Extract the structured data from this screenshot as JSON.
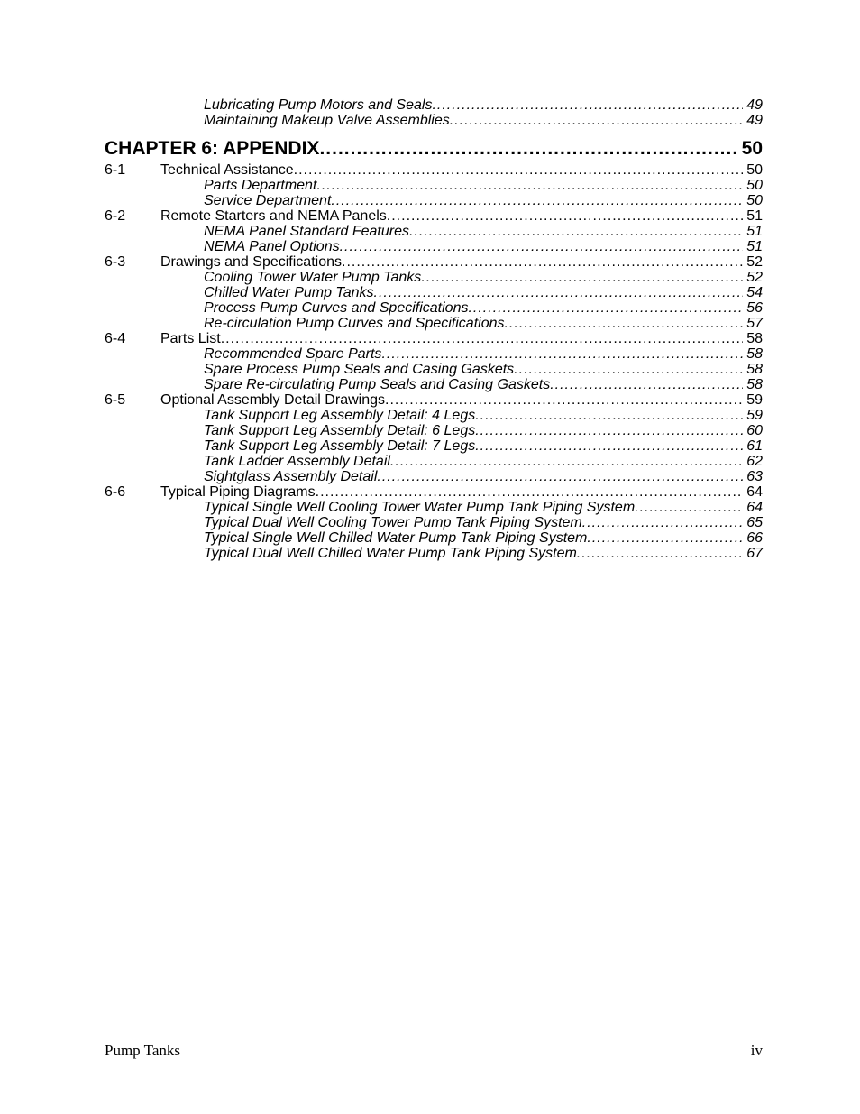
{
  "text_color": "#000000",
  "background_color": "#ffffff",
  "pre_subs": [
    {
      "label": "Lubricating Pump Motors and Seals",
      "page": "49"
    },
    {
      "label": "Maintaining Makeup Valve Assemblies",
      "page": "49"
    }
  ],
  "chapter": {
    "label": "CHAPTER 6:   APPENDIX",
    "page": "50"
  },
  "sections": [
    {
      "num": "6-1",
      "label": "Technical Assistance",
      "page": "50",
      "subs": [
        {
          "label": "Parts Department",
          "page": "50"
        },
        {
          "label": "Service Department",
          "page": "50"
        }
      ]
    },
    {
      "num": "6-2",
      "label": "Remote Starters and NEMA Panels",
      "page": "51",
      "subs": [
        {
          "label": "NEMA Panel Standard Features",
          "page": "51"
        },
        {
          "label": "NEMA Panel Options",
          "page": "51"
        }
      ]
    },
    {
      "num": "6-3",
      "label": "Drawings and Specifications",
      "page": "52",
      "subs": [
        {
          "label": "Cooling Tower Water Pump Tanks",
          "page": "52"
        },
        {
          "label": "Chilled Water Pump Tanks",
          "page": "54"
        },
        {
          "label": "Process Pump Curves and Specifications",
          "page": "56"
        },
        {
          "label": "Re-circulation Pump Curves and Specifications",
          "page": "57"
        }
      ]
    },
    {
      "num": "6-4",
      "label": "Parts List",
      "page": "58",
      "subs": [
        {
          "label": "Recommended Spare Parts",
          "page": "58"
        },
        {
          "label": "Spare Process Pump Seals and Casing Gaskets",
          "page": "58"
        },
        {
          "label": "Spare Re-circulating Pump Seals and Casing Gaskets",
          "page": "58"
        }
      ]
    },
    {
      "num": "6-5",
      "label": "Optional Assembly Detail Drawings",
      "page": "59",
      "subs": [
        {
          "label": "Tank Support Leg Assembly Detail: 4 Legs",
          "page": "59"
        },
        {
          "label": "Tank Support Leg Assembly Detail: 6 Legs",
          "page": "60"
        },
        {
          "label": "Tank Support Leg Assembly Detail: 7 Legs",
          "page": "61"
        },
        {
          "label": "Tank Ladder Assembly Detail",
          "page": "62"
        },
        {
          "label": "Sightglass Assembly Detail",
          "page": "63"
        }
      ]
    },
    {
      "num": "6-6",
      "label": "Typical Piping Diagrams",
      "page": "64",
      "subs": [
        {
          "label": "Typical Single Well Cooling Tower Water Pump Tank Piping System",
          "page": "64"
        },
        {
          "label": "Typical Dual Well Cooling Tower Pump Tank Piping System",
          "page": "65"
        },
        {
          "label": "Typical Single Well Chilled Water Pump Tank Piping System",
          "page": "66"
        },
        {
          "label": "Typical Dual Well Chilled Water Pump Tank Piping System",
          "page": "67"
        }
      ]
    }
  ],
  "footer": {
    "left": "Pump Tanks",
    "right": "iv"
  }
}
